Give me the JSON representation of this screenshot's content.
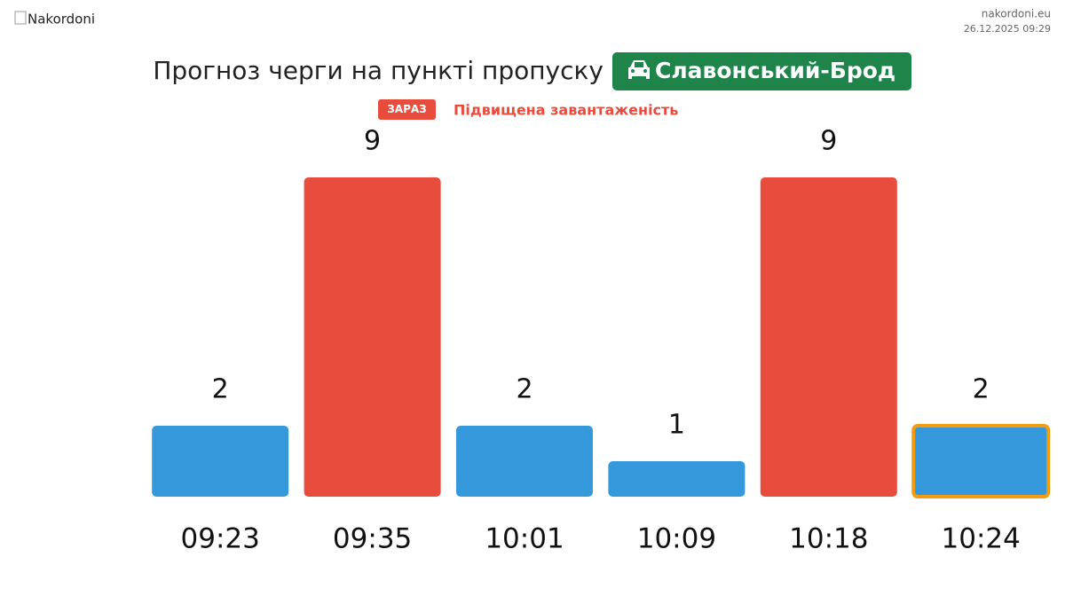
{
  "header": {
    "logo_alt": "Nakordoni",
    "site": "nakordoni.eu",
    "datetime": "26.12.2025 09:29"
  },
  "chart_data": {
    "type": "bar",
    "title": "Прогноз черги на пункті пропуску",
    "checkpoint": "Славонський-Брод",
    "status_badge": "ЗАРАЗ",
    "status_text": "Підвищена завантаженість",
    "categories": [
      "09:23",
      "09:35",
      "10:01",
      "10:09",
      "10:18",
      "10:24"
    ],
    "values": [
      2,
      9,
      2,
      1,
      9,
      2
    ],
    "colors": [
      "#3498db",
      "#e74c3c",
      "#3498db",
      "#3498db",
      "#e74c3c",
      "#3498db"
    ],
    "highlighted_category": "10:24",
    "highlight_color": "#f39c12"
  }
}
